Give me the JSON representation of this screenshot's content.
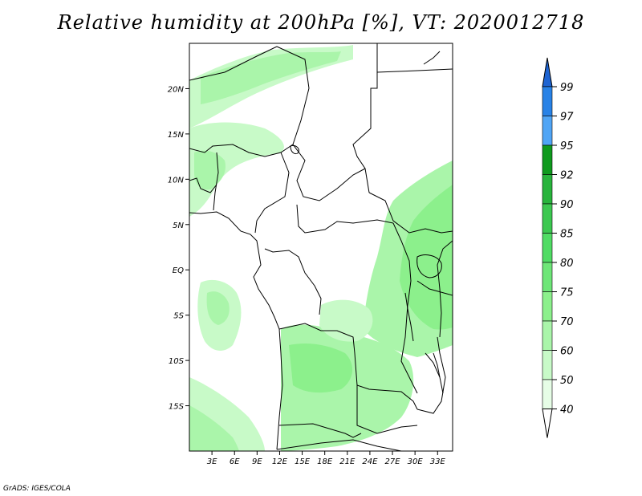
{
  "title": "Relative humidity at 200hPa [%], VT: 2020012718",
  "credit": "GrADS: IGES/COLA",
  "map": {
    "lon_min": 0,
    "lon_max": 35,
    "lat_min": -20,
    "lat_max": 25,
    "lat_ticks": [
      {
        "value": 20,
        "label": "20N"
      },
      {
        "value": 15,
        "label": "15N"
      },
      {
        "value": 10,
        "label": "10N"
      },
      {
        "value": 5,
        "label": "5N"
      },
      {
        "value": 0,
        "label": "EQ"
      },
      {
        "value": -5,
        "label": "5S"
      },
      {
        "value": -10,
        "label": "10S"
      },
      {
        "value": -15,
        "label": "15S"
      }
    ],
    "lon_ticks": [
      {
        "value": 3,
        "label": "3E"
      },
      {
        "value": 6,
        "label": "6E"
      },
      {
        "value": 9,
        "label": "9E"
      },
      {
        "value": 12,
        "label": "12E"
      },
      {
        "value": 15,
        "label": "15E"
      },
      {
        "value": 18,
        "label": "18E"
      },
      {
        "value": 21,
        "label": "21E"
      },
      {
        "value": 24,
        "label": "24E"
      },
      {
        "value": 27,
        "label": "27E"
      },
      {
        "value": 30,
        "label": "30E"
      },
      {
        "value": 33,
        "label": "33E"
      }
    ]
  },
  "colorbar": {
    "levels": [
      "99",
      "97",
      "95",
      "92",
      "90",
      "85",
      "80",
      "75",
      "70",
      "60",
      "50",
      "40"
    ],
    "colors": [
      "#1e64d2",
      "#2882e6",
      "#50a5f5",
      "#0f9a1e",
      "#28b43c",
      "#3cc850",
      "#50dc64",
      "#6ee678",
      "#8cf08c",
      "#aaf5aa",
      "#c8fac8",
      "#e6fde6"
    ]
  }
}
